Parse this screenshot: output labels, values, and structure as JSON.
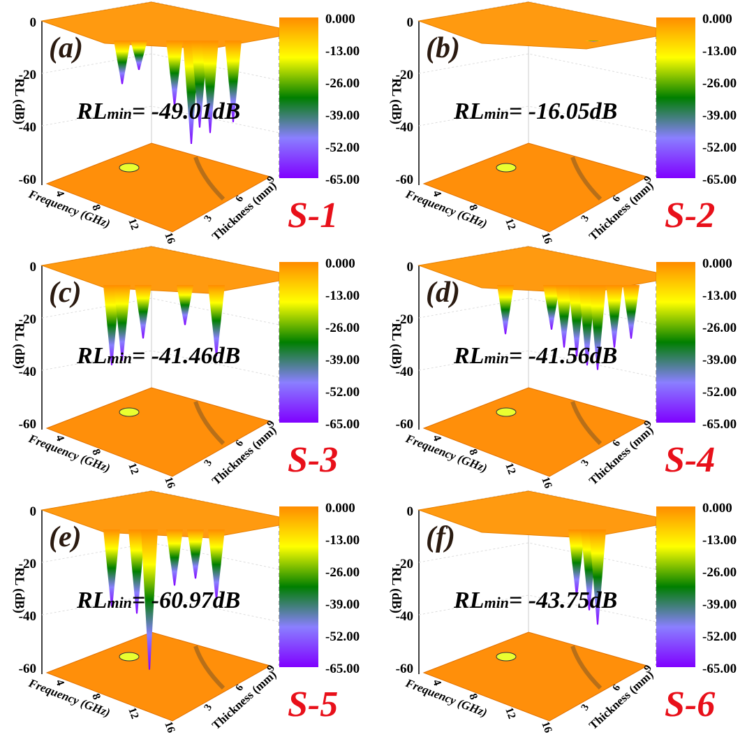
{
  "chart_data": {
    "type": "surface3d",
    "zlabel": "RL (dB)",
    "xlabel": "Frequency (GHz)",
    "ylabel": "Thickness (mm)",
    "z_ticks": [
      "0",
      "-20",
      "-40",
      "-60"
    ],
    "x_ticks": [
      "4",
      "8",
      "12",
      "16"
    ],
    "y_ticks": [
      "3",
      "6",
      "9"
    ],
    "zlim": [
      -65,
      0
    ],
    "colorbar": {
      "ticks": [
        "0.000",
        "-13.00",
        "-26.00",
        "-39.00",
        "-52.00",
        "-65.00"
      ],
      "colors": [
        "#ff8c00",
        "#ffff00",
        "#007f00",
        "#8a7fff",
        "#7f00ff"
      ]
    },
    "panels": [
      {
        "letter": "(a)",
        "sample": "S-1",
        "rl_label": "RL",
        "rl_sub": "min",
        "rl_text": "= -49.01dB",
        "rl_min": -49.01
      },
      {
        "letter": "(b)",
        "sample": "S-2",
        "rl_label": "RL",
        "rl_sub": "min",
        "rl_text": "= -16.05dB",
        "rl_min": -16.05
      },
      {
        "letter": "(c)",
        "sample": "S-3",
        "rl_label": "RL",
        "rl_sub": "min",
        "rl_text": "= -41.46dB",
        "rl_min": -41.46
      },
      {
        "letter": "(d)",
        "sample": "S-4",
        "rl_label": "RL",
        "rl_sub": "min",
        "rl_text": "= -41.56dB",
        "rl_min": -41.56
      },
      {
        "letter": "(e)",
        "sample": "S-5",
        "rl_label": "RL",
        "rl_sub": "min",
        "rl_text": "= -60.97dB",
        "rl_min": -60.97
      },
      {
        "letter": "(f)",
        "sample": "S-6",
        "rl_label": "RL",
        "rl_sub": "min",
        "rl_text": "= -43.75dB",
        "rl_min": -43.75
      }
    ]
  }
}
